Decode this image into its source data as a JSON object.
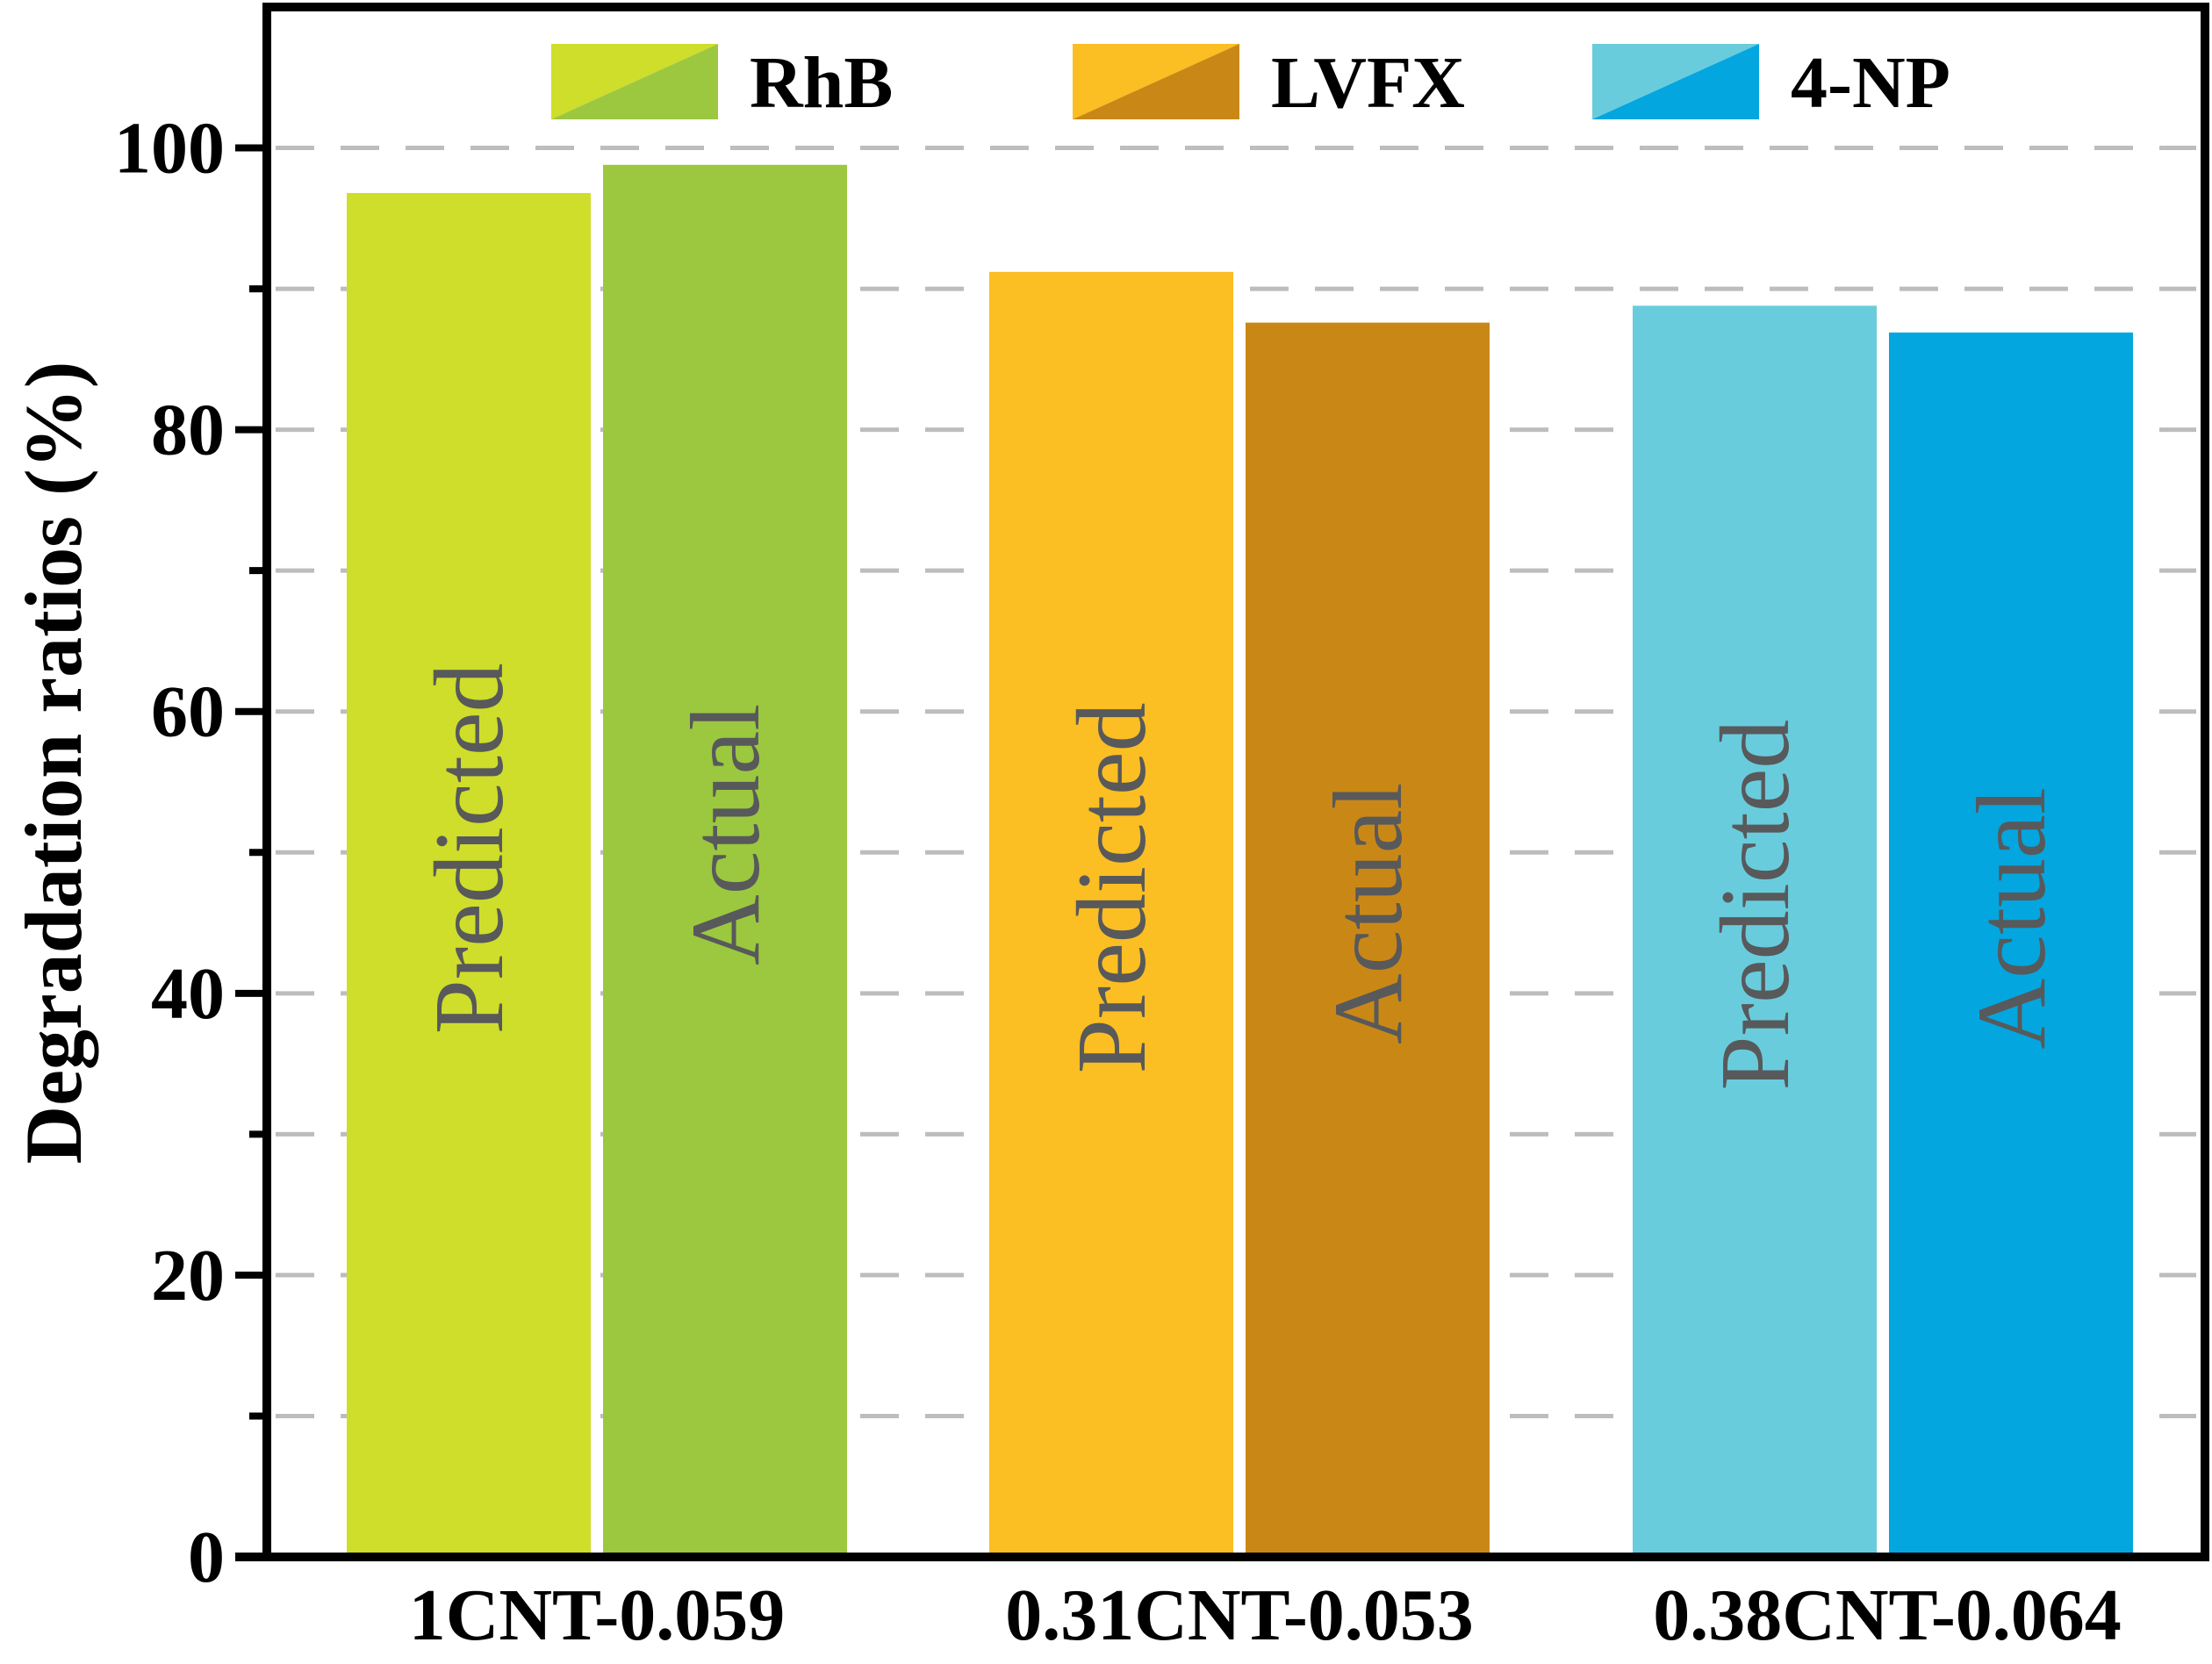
{
  "chart_data": {
    "type": "bar",
    "ylabel": "Degradation ratios (%)",
    "xlabel": "",
    "ylim": [
      0,
      110
    ],
    "yticks_major": [
      0,
      20,
      40,
      60,
      80,
      100
    ],
    "yticks_minor": [
      10,
      30,
      50,
      70,
      90
    ],
    "grid": "dashed horizontal at every 10",
    "legend_position": "top",
    "categories": [
      "1CNT-0.059",
      "0.31CNT-0.053",
      "0.38CNT-0.064"
    ],
    "groups": [
      {
        "name": "RhB",
        "category": "1CNT-0.059",
        "bars": [
          {
            "label": "Predicted",
            "value": 96.8,
            "color": "#CFDD2B"
          },
          {
            "label": "Actual",
            "value": 98.8,
            "color": "#9BC83F"
          }
        ]
      },
      {
        "name": "LVFX",
        "category": "0.31CNT-0.053",
        "bars": [
          {
            "label": "Predicted",
            "value": 91.2,
            "color": "#FBBE23"
          },
          {
            "label": "Actual",
            "value": 87.6,
            "color": "#C98816"
          }
        ]
      },
      {
        "name": "4-NP",
        "category": "0.38CNT-0.064",
        "bars": [
          {
            "label": "Predicted",
            "value": 88.8,
            "color": "#69CCDC"
          },
          {
            "label": "Actual",
            "value": 86.9,
            "color": "#03A6DF"
          }
        ]
      }
    ],
    "legend": [
      "RhB",
      "LVFX",
      "4-NP"
    ],
    "bar_text_color": "#58595B"
  }
}
